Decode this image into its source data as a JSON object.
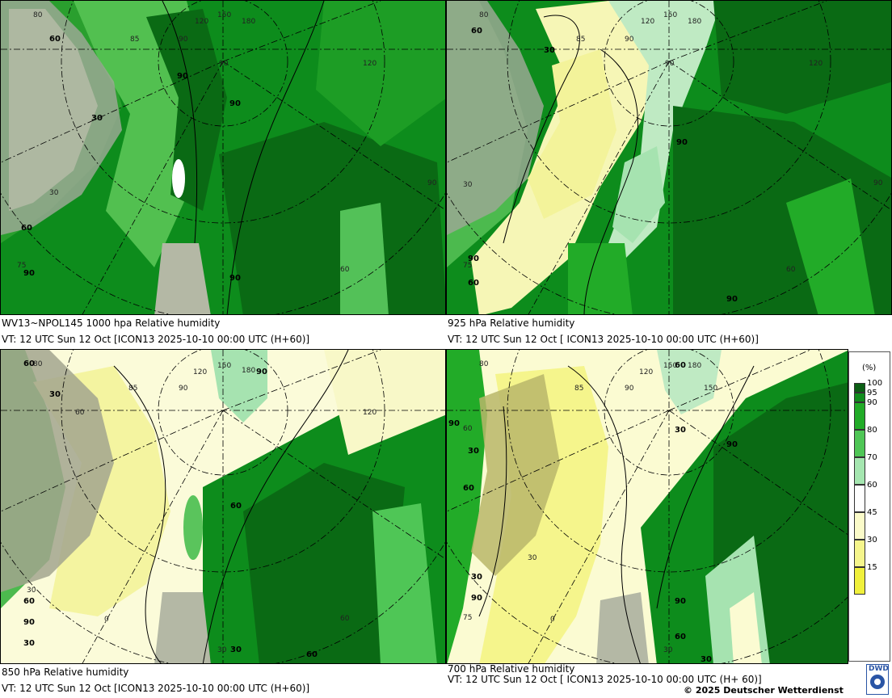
{
  "panels": [
    {
      "id": "p1000",
      "line1": "WV13~NPOL145 1000 hpa Relative humidity",
      "line2": "VT: 12 UTC Sun  12 Oct [ICON13 2025-10-10 00:00 UTC  (H+60)]",
      "bold_labels": [
        "60",
        "90",
        "90",
        "30",
        "60",
        "90",
        "90"
      ],
      "contour_labels": [
        "80",
        "85",
        "90",
        "120",
        "150",
        "180",
        "120",
        "90",
        "90",
        "75",
        "60",
        "30"
      ]
    },
    {
      "id": "p925",
      "line1": "925 hPa Relative humidity",
      "line2": "VT: 12 UTC Sun  12 Oct [ ICON13 2025-10-10 00:00 UTC  (H+60)]",
      "bold_labels": [
        "60",
        "30",
        "90",
        "90",
        "60",
        "90"
      ],
      "contour_labels": [
        "80",
        "85",
        "90",
        "120",
        "150",
        "180",
        "120",
        "90",
        "90",
        "30",
        "75",
        "60"
      ]
    },
    {
      "id": "p850",
      "line1": "850 hPa  Relative humidity",
      "line2": "VT: 12 UTC Sun  12 Oct [ICON13 2025-10-10 00:00 UTC (H+60)]",
      "bold_labels": [
        "60",
        "30",
        "90",
        "60",
        "60",
        "90",
        "30",
        "30",
        "60"
      ],
      "contour_labels": [
        "80",
        "85",
        "90",
        "120",
        "150",
        "180",
        "120",
        "60",
        "30",
        "0",
        "60",
        "30"
      ]
    },
    {
      "id": "p700",
      "line1": "700 hPa Relative humidity",
      "line2": "VT: 12 UTC Sun  12 Oct [ ICON13 2025-10-10 00:00 UTC  (H+ 60)]",
      "bold_labels": [
        "60",
        "90",
        "30",
        "60",
        "30",
        "90",
        "90",
        "90",
        "60",
        "30",
        "30"
      ],
      "contour_labels": [
        "80",
        "85",
        "90",
        "120",
        "150",
        "180",
        "150",
        "60",
        "30",
        "75",
        "0",
        "30"
      ]
    }
  ],
  "legend": {
    "unit": "(%)",
    "ticks": [
      "100",
      "95",
      "90",
      "80",
      "70",
      "60",
      "45",
      "30",
      "15"
    ],
    "colors": [
      "#0b5e14",
      "#118d1d",
      "#22ab28",
      "#4fc656",
      "#a5e6b0",
      "#ffffff",
      "#fbfbc9",
      "#f5f58c",
      "#f0f03c"
    ]
  },
  "copyright": "© 2025 Deutscher Wetterdienst",
  "logo_text": "DWD"
}
